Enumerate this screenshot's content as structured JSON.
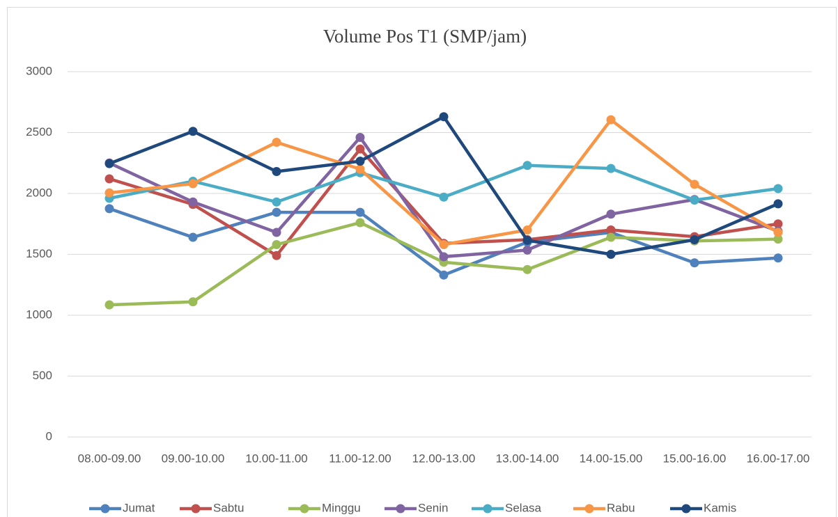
{
  "chart_data": {
    "type": "line",
    "title": "Volume Pos T1 (SMP/jam)",
    "categories": [
      "08.00-09.00",
      "09.00-10.00",
      "10.00-11.00",
      "11.00-12.00",
      "12.00-13.00",
      "13.00-14.00",
      "14.00-15.00",
      "15.00-16.00",
      "16.00-17.00"
    ],
    "series": [
      {
        "name": "Jumat",
        "color": "#4f81bd",
        "values": [
          1875,
          1640,
          1845,
          1845,
          1330,
          1600,
          1680,
          1430,
          1470
        ]
      },
      {
        "name": "Sabtu",
        "color": "#c0504d",
        "values": [
          2120,
          1910,
          1490,
          2365,
          1590,
          1620,
          1700,
          1645,
          1750
        ]
      },
      {
        "name": "Minggu",
        "color": "#9bbb59",
        "values": [
          1085,
          1110,
          1580,
          1760,
          1435,
          1375,
          1640,
          1610,
          1625
        ]
      },
      {
        "name": "Senin",
        "color": "#8064a2",
        "values": [
          2250,
          1930,
          1680,
          2460,
          1480,
          1535,
          1830,
          1950,
          1690
        ]
      },
      {
        "name": "Selasa",
        "color": "#4bacc6",
        "values": [
          1960,
          2100,
          1930,
          2170,
          1970,
          2230,
          2205,
          1945,
          2040
        ]
      },
      {
        "name": "Rabu",
        "color": "#f79646",
        "values": [
          2005,
          2080,
          2420,
          2200,
          1580,
          1700,
          2605,
          2075,
          1680
        ]
      },
      {
        "name": "Kamis",
        "color": "#1f497d",
        "values": [
          2245,
          2510,
          2180,
          2265,
          2630,
          1615,
          1500,
          1620,
          1915
        ]
      }
    ],
    "ylim": [
      0,
      3000
    ],
    "yticks": [
      0,
      500,
      1000,
      1500,
      2000,
      2500,
      3000
    ],
    "grid": true,
    "legend": "bottom"
  }
}
